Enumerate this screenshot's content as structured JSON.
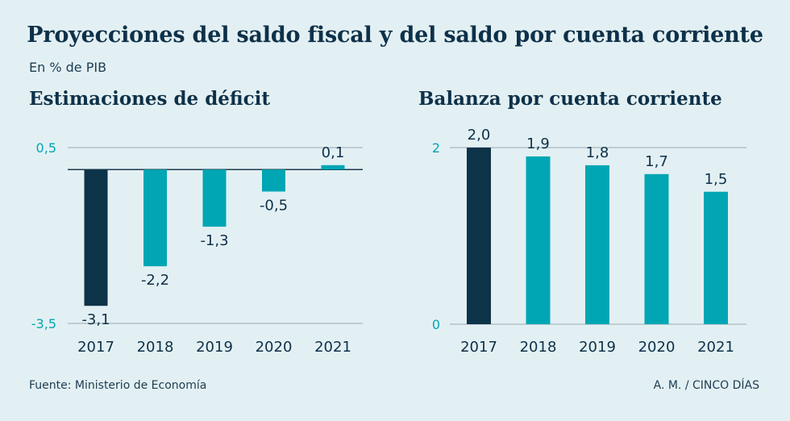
{
  "header": {
    "title": "Proyecciones del saldo fiscal y del saldo por cuenta corriente",
    "subtitle": "En % de PIB"
  },
  "colors": {
    "highlight": "#0d3349",
    "bar": "#00a6b4",
    "axis_label": "#00a6b4",
    "grid": "#9aa9b2",
    "text": "#0e3149"
  },
  "chart_data": [
    {
      "type": "bar",
      "title": "Estimaciones de déficit",
      "categories": [
        "2017",
        "2018",
        "2019",
        "2020",
        "2021"
      ],
      "values": [
        -3.1,
        -2.2,
        -1.3,
        -0.5,
        0.1
      ],
      "value_labels": [
        "-3,1",
        "-2,2",
        "-1,3",
        "-0,5",
        "0,1"
      ],
      "yticks": [
        0.5,
        -3.5
      ],
      "ytick_labels": [
        "0,5",
        "-3,5"
      ],
      "ylim": [
        -3.5,
        0.5
      ],
      "highlight_index": 0
    },
    {
      "type": "bar",
      "title": "Balanza por cuenta corriente",
      "categories": [
        "2017",
        "2018",
        "2019",
        "2020",
        "2021"
      ],
      "values": [
        2.0,
        1.9,
        1.8,
        1.7,
        1.5
      ],
      "value_labels": [
        "2,0",
        "1,9",
        "1,8",
        "1,7",
        "1,5"
      ],
      "yticks": [
        2,
        0
      ],
      "ytick_labels": [
        "2",
        "0"
      ],
      "ylim": [
        0,
        2
      ],
      "highlight_index": 0
    }
  ],
  "footer": {
    "source": "Fuente: Ministerio de Economía",
    "credit": "A. M. / CINCO DÍAS"
  }
}
